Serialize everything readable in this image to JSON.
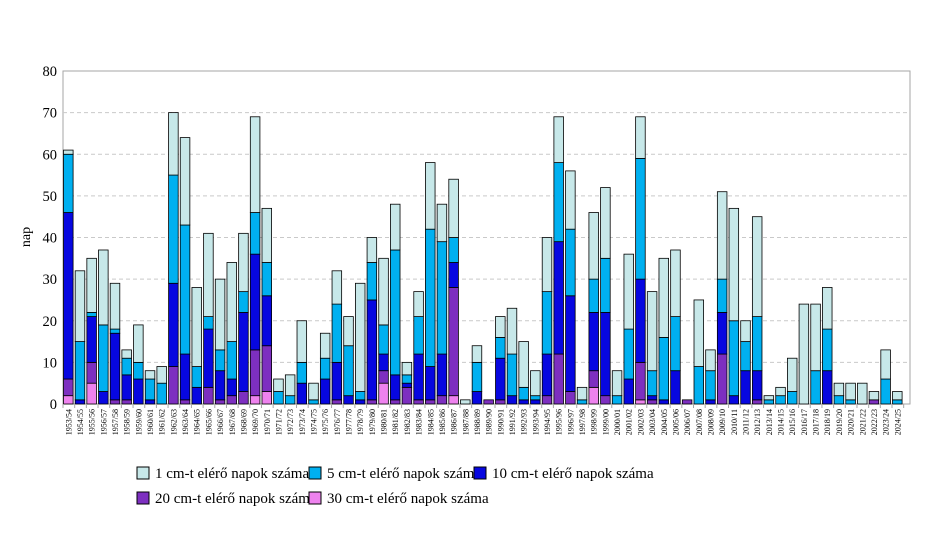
{
  "page": {
    "background": "#ffffff"
  },
  "y_axis": {
    "title": "nap",
    "ticks": [
      0,
      10,
      20,
      30,
      40,
      50,
      60,
      70,
      80
    ]
  },
  "chart_data": {
    "type": "bar",
    "stacked": true,
    "title": "",
    "xlabel": "",
    "ylabel": "nap",
    "ylim": [
      0,
      80
    ],
    "grid": {
      "y": true,
      "style": "dashed",
      "color": "#c9c9c9"
    },
    "legend_position": "bottom",
    "note": "Values are cumulative day counts per snow-depth threshold (days reaching at least X cm). Rendered segment height = difference between successive thresholds.",
    "categories": [
      "1953/54",
      "1954/55",
      "1955/56",
      "1956/57",
      "1957/58",
      "1958/59",
      "1959/60",
      "1960/61",
      "1961/62",
      "1962/63",
      "1963/64",
      "1964/65",
      "1965/66",
      "1966/67",
      "1967/68",
      "1968/69",
      "1969/70",
      "1970/71",
      "1971/72",
      "1972/73",
      "1973/74",
      "1974/75",
      "1975/76",
      "1976/77",
      "1977/78",
      "1978/79",
      "1979/80",
      "1980/81",
      "1981/82",
      "1982/83",
      "1983/84",
      "1984/85",
      "1985/86",
      "1986/87",
      "1987/88",
      "1988/89",
      "1989/90",
      "1990/91",
      "1991/92",
      "1992/93",
      "1993/94",
      "1994/95",
      "1995/96",
      "1996/97",
      "1997/98",
      "1998/99",
      "1999/00",
      "2000/01",
      "2001/02",
      "2002/03",
      "2003/04",
      "2004/05",
      "2005/06",
      "2006/07",
      "2007/08",
      "2008/09",
      "2009/10",
      "2010/11",
      "2011/12",
      "2012/13",
      "2013/14",
      "2014/15",
      "2015/16",
      "2016/17",
      "2017/18",
      "2018/19",
      "2019/20",
      "2020/21",
      "2021/22",
      "2022/23",
      "2023/24",
      "2024/25"
    ],
    "series": [
      {
        "name": "1 cm-t elérő napok száma",
        "color": "#c7e8e9",
        "values": [
          61,
          32,
          35,
          37,
          29,
          13,
          19,
          8,
          9,
          70,
          64,
          28,
          41,
          30,
          34,
          41,
          69,
          47,
          6,
          7,
          20,
          5,
          17,
          32,
          21,
          29,
          40,
          35,
          48,
          10,
          27,
          58,
          48,
          54,
          1,
          14,
          1,
          21,
          23,
          15,
          8,
          40,
          69,
          56,
          4,
          46,
          52,
          8,
          36,
          69,
          27,
          35,
          37,
          1,
          25,
          13,
          51,
          47,
          20,
          45,
          2,
          4,
          11,
          24,
          24,
          28,
          5,
          5,
          5,
          3,
          13,
          3
        ]
      },
      {
        "name": "5 cm-t elérő napok száma",
        "color": "#00b0f0",
        "values": [
          60,
          15,
          22,
          19,
          18,
          11,
          10,
          6,
          5,
          55,
          43,
          9,
          21,
          13,
          15,
          27,
          46,
          34,
          3,
          2,
          10,
          1,
          11,
          24,
          14,
          3,
          34,
          19,
          37,
          7,
          21,
          42,
          39,
          40,
          0,
          10,
          1,
          16,
          12,
          4,
          2,
          27,
          58,
          42,
          1,
          30,
          35,
          2,
          18,
          59,
          8,
          16,
          21,
          1,
          9,
          8,
          30,
          20,
          15,
          21,
          1,
          2,
          3,
          0,
          8,
          18,
          2,
          1,
          0,
          0,
          6,
          1
        ]
      },
      {
        "name": "10 cm-t elérő napok száma",
        "color": "#0707e0",
        "values": [
          46,
          1,
          21,
          3,
          17,
          7,
          6,
          1,
          0,
          29,
          12,
          4,
          18,
          8,
          6,
          22,
          36,
          26,
          0,
          0,
          5,
          0,
          6,
          10,
          2,
          1,
          25,
          12,
          7,
          5,
          12,
          9,
          12,
          34,
          0,
          3,
          1,
          11,
          2,
          1,
          1,
          12,
          39,
          26,
          0,
          22,
          22,
          0,
          6,
          30,
          2,
          1,
          8,
          1,
          0,
          1,
          22,
          2,
          8,
          8,
          0,
          0,
          0,
          0,
          0,
          8,
          0,
          0,
          0,
          0,
          0,
          0
        ]
      },
      {
        "name": "20 cm-t elérő napok száma",
        "color": "#7d2fc0",
        "values": [
          6,
          0,
          10,
          0,
          1,
          1,
          0,
          0,
          0,
          9,
          1,
          0,
          4,
          1,
          2,
          3,
          13,
          14,
          0,
          0,
          0,
          0,
          0,
          1,
          0,
          0,
          1,
          8,
          1,
          4,
          1,
          1,
          2,
          28,
          0,
          0,
          1,
          1,
          0,
          0,
          0,
          2,
          12,
          3,
          0,
          8,
          2,
          0,
          0,
          10,
          1,
          0,
          0,
          1,
          0,
          0,
          12,
          0,
          0,
          1,
          0,
          0,
          0,
          0,
          0,
          0,
          0,
          0,
          0,
          1,
          0,
          0
        ]
      },
      {
        "name": "30 cm-t elérő napok száma",
        "color": "#ee82ee",
        "values": [
          2,
          0,
          5,
          0,
          0,
          0,
          0,
          0,
          0,
          0,
          0,
          0,
          0,
          0,
          0,
          0,
          2,
          3,
          0,
          0,
          0,
          0,
          0,
          0,
          0,
          0,
          0,
          5,
          0,
          0,
          0,
          0,
          0,
          2,
          0,
          0,
          0,
          0,
          0,
          0,
          0,
          0,
          0,
          0,
          0,
          4,
          0,
          0,
          0,
          1,
          0,
          0,
          0,
          0,
          0,
          0,
          0,
          0,
          0,
          0,
          0,
          0,
          0,
          0,
          0,
          0,
          0,
          0,
          0,
          0,
          0,
          0
        ]
      }
    ],
    "legend_rows": [
      [
        0,
        1,
        2
      ],
      [
        3,
        4
      ]
    ]
  }
}
